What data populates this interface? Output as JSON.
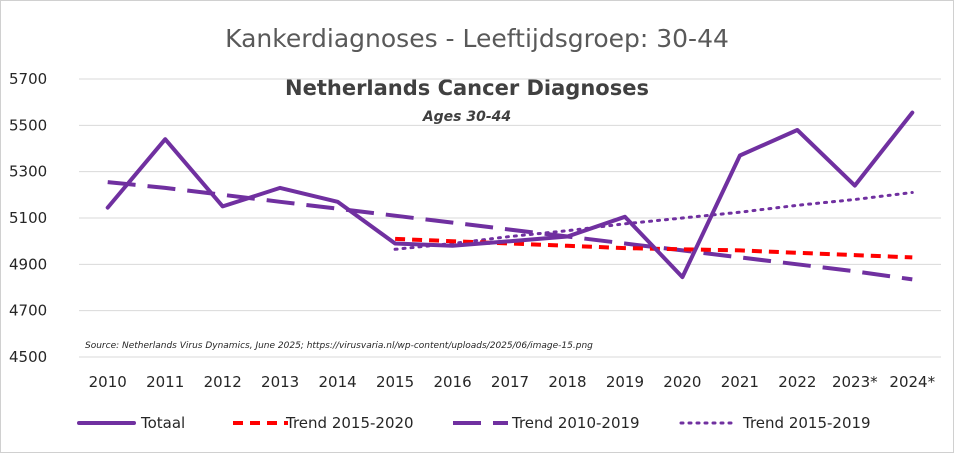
{
  "colors": {
    "totaal": "#7030a0",
    "trend_2015_2020": "#ff0000",
    "trend_2010_2019": "#7030a0",
    "trend_2015_2019": "#7030a0",
    "grid": "#d9d9d9"
  },
  "chart_data": {
    "type": "line",
    "title": "Kankerdiagnoses - Leeftijdsgroep: 30-44",
    "inner_title": "Netherlands Cancer Diagnoses",
    "inner_subtitle": "Ages 30-44",
    "source": "Source: Netherlands Virus Dynamics, June 2025; https://virusvaria.nl/wp-content/uploads/2025/06/image-15.png",
    "categories": [
      "2010",
      "2011",
      "2012",
      "2013",
      "2014",
      "2015",
      "2016",
      "2017",
      "2018",
      "2019",
      "2020",
      "2021",
      "2022",
      "2023*",
      "2024*"
    ],
    "yticks": [
      "4500",
      "4700",
      "4900",
      "5100",
      "5300",
      "5500",
      "5700"
    ],
    "ylim": [
      4500,
      5700
    ],
    "grid": true,
    "legend_position": "bottom",
    "series": [
      {
        "name": "Totaal",
        "style": "solid",
        "values": [
          5145,
          5440,
          5150,
          5230,
          5170,
          4990,
          4980,
          5000,
          5020,
          5105,
          4845,
          5370,
          5480,
          5240,
          5555
        ]
      },
      {
        "name": "Trend 2015-2020",
        "style": "dashed",
        "values": [
          null,
          null,
          null,
          null,
          null,
          5010,
          5000,
          4990,
          4980,
          4970,
          4965,
          4960,
          4950,
          4940,
          4930
        ]
      },
      {
        "name": "Trend 2010-2019",
        "style": "long-dash",
        "values": [
          5255,
          5230,
          5200,
          5170,
          5140,
          5110,
          5080,
          5050,
          5020,
          4990,
          4960,
          4930,
          4900,
          4870,
          4835
        ]
      },
      {
        "name": "Trend 2015-2019",
        "style": "dotted",
        "values": [
          null,
          null,
          null,
          null,
          null,
          4965,
          4990,
          5020,
          5045,
          5075,
          5100,
          5125,
          5155,
          5180,
          5210
        ]
      }
    ]
  }
}
